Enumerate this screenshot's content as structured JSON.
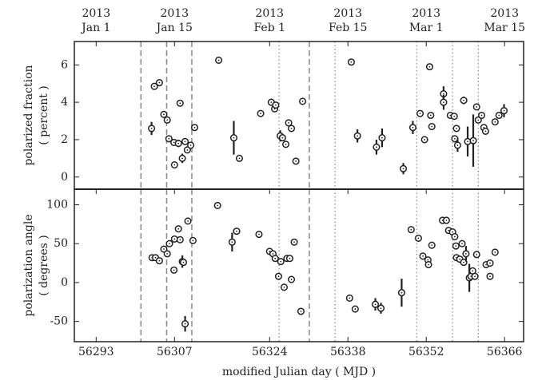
{
  "chart_data": [
    {
      "type": "scatter",
      "ylabel": [
        "polarized fraction",
        "( percent )"
      ],
      "xlim": [
        56289.1,
        56369.4
      ],
      "ylim": [
        -0.65,
        7.25
      ],
      "yticks": [
        0,
        2,
        4,
        6
      ],
      "x2ticks": [
        {
          "value": 56293,
          "label": "2013\nJan 1"
        },
        {
          "value": 56307,
          "label": "2013\nJan 15"
        },
        {
          "value": 56324,
          "label": "2013\nFeb 1"
        },
        {
          "value": 56338,
          "label": "2013\nFeb 15"
        },
        {
          "value": 56352,
          "label": "2013\nMar 1"
        },
        {
          "value": 56366,
          "label": "2013\nMar 15"
        }
      ],
      "dashed_lines": [
        56301,
        56305.6,
        56310.1,
        56331.1
      ],
      "dotted_lines": [
        56325.7,
        56335.7,
        56350.3,
        56356.7,
        56361.3
      ],
      "color": "#222",
      "x": [
        56302.9,
        56303.4,
        56304.3,
        56305.1,
        56305.7,
        56306.0,
        56306.9,
        56307.0,
        56307.7,
        56308.0,
        56308.4,
        56308.9,
        56309.3,
        56309.9,
        56310.6,
        56314.9,
        56317.6,
        56318.6,
        56322.4,
        56324.3,
        56324.9,
        56325.1,
        56325.9,
        56326.3,
        56326.9,
        56327.4,
        56327.9,
        56328.7,
        56329.9,
        56338.6,
        56339.7,
        56343.1,
        56344.1,
        56347.9,
        56349.6,
        56350.9,
        56351.7,
        56352.6,
        56353.0,
        56352.8,
        56355.1,
        56355.1,
        56356.3,
        56357.0,
        56357.1,
        56357.4,
        56357.6,
        56358.7,
        56359.4,
        56360.4,
        56361.0,
        56361.3,
        56361.9,
        56362.3,
        56362.6,
        56364.3,
        56365.0,
        56365.9
      ],
      "values": [
        2.6,
        4.85,
        5.05,
        3.35,
        3.05,
        2.05,
        1.85,
        0.65,
        1.8,
        3.95,
        1.0,
        1.9,
        1.45,
        1.7,
        2.65,
        6.25,
        2.1,
        1.0,
        3.4,
        4.0,
        3.65,
        3.85,
        2.2,
        2.1,
        1.75,
        2.9,
        2.6,
        0.85,
        4.05,
        6.15,
        2.2,
        1.6,
        2.1,
        0.45,
        2.65,
        3.4,
        2.0,
        5.9,
        2.7,
        3.3,
        4.45,
        4.0,
        3.3,
        3.25,
        2.05,
        2.6,
        1.7,
        4.1,
        1.9,
        1.95,
        3.75,
        3.05,
        3.3,
        2.65,
        2.45,
        2.95,
        3.3,
        3.55
      ],
      "errors": [
        0.35,
        null,
        null,
        null,
        null,
        null,
        null,
        null,
        0.2,
        null,
        0.25,
        null,
        null,
        null,
        null,
        null,
        0.9,
        null,
        null,
        null,
        null,
        null,
        0.3,
        null,
        null,
        null,
        null,
        null,
        null,
        null,
        0.35,
        0.4,
        0.5,
        0.3,
        0.35,
        null,
        null,
        null,
        null,
        null,
        0.4,
        0.4,
        null,
        null,
        null,
        null,
        0.35,
        0.2,
        0.8,
        1.4,
        null,
        null,
        null,
        null,
        null,
        null,
        null,
        0.35
      ]
    },
    {
      "type": "scatter",
      "ylabel": [
        "polarization angle",
        "( degrees )"
      ],
      "xlabel": "modified Julian day ( MJD )",
      "xlim": [
        56289.1,
        56369.4
      ],
      "ylim": [
        -76,
        120
      ],
      "yticks": [
        -50,
        0,
        50,
        100
      ],
      "xticks": [
        56293,
        56307,
        56324,
        56338,
        56352,
        56366
      ],
      "dashed_lines": [
        56301,
        56305.6,
        56310.1,
        56331.1
      ],
      "dotted_lines": [
        56325.7,
        56335.7,
        56350.3,
        56356.7,
        56361.3
      ],
      "color": "#222",
      "x": [
        56303.0,
        56303.6,
        56304.3,
        56305.1,
        56305.7,
        56306.1,
        56306.9,
        56307.0,
        56307.7,
        56308.0,
        56308.4,
        56308.6,
        56308.9,
        56309.4,
        56310.3,
        56314.7,
        56317.3,
        56318.1,
        56322.1,
        56324.0,
        56324.6,
        56325.0,
        56325.6,
        56326.0,
        56326.6,
        56327.1,
        56327.6,
        56327.9,
        56328.4,
        56329.6,
        56338.3,
        56339.3,
        56342.9,
        56343.9,
        56347.6,
        56349.3,
        56350.6,
        56351.4,
        56352.3,
        56352.4,
        56353.0,
        56354.9,
        56355.6,
        56356.0,
        56356.7,
        56357.1,
        56357.3,
        56357.4,
        56358.0,
        56358.4,
        56358.7,
        56359.1,
        56359.7,
        56360.0,
        56360.3,
        56360.7,
        56361.0,
        56362.7,
        56363.4,
        56363.4,
        56364.3
      ],
      "values": [
        32,
        32,
        28,
        43,
        37,
        50,
        16,
        56,
        69,
        55,
        27,
        26,
        -53,
        79,
        54,
        99,
        52,
        66,
        62,
        40,
        37,
        31,
        8,
        27,
        -6,
        31,
        31,
        4,
        52,
        -37,
        -20,
        -34,
        -28,
        -33,
        -13,
        68,
        57,
        34,
        29,
        23,
        48,
        80,
        80,
        67,
        65,
        59,
        47,
        32,
        30,
        50,
        26,
        37,
        6,
        8,
        15,
        8,
        36,
        23,
        25,
        8,
        39
      ],
      "errors": [
        null,
        null,
        null,
        null,
        null,
        null,
        null,
        null,
        null,
        null,
        8,
        null,
        10,
        null,
        null,
        null,
        12,
        null,
        null,
        null,
        null,
        null,
        null,
        null,
        null,
        null,
        null,
        null,
        null,
        null,
        null,
        null,
        8,
        7,
        18,
        null,
        null,
        null,
        null,
        null,
        null,
        null,
        null,
        null,
        null,
        null,
        null,
        null,
        null,
        null,
        null,
        10,
        18,
        null,
        null,
        null,
        null,
        null,
        null,
        null,
        null
      ]
    }
  ]
}
